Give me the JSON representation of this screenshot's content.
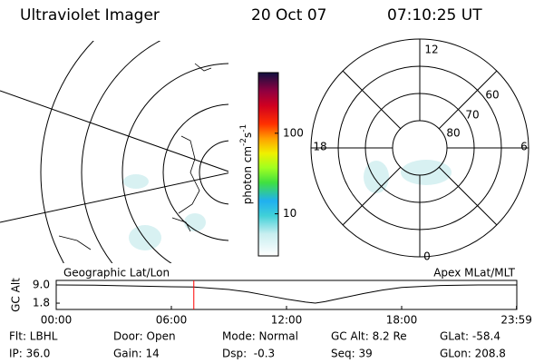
{
  "header": {
    "title": "Ultraviolet Imager",
    "date": "20 Oct 07",
    "time": "07:10:25 UT"
  },
  "left_map": {
    "caption": "Geographic Lat/Lon"
  },
  "right_map": {
    "caption": "Apex MLat/MLT",
    "mlt_labels": [
      "12",
      "6",
      "0",
      "18"
    ],
    "mlat_labels": [
      "60",
      "70",
      "80"
    ]
  },
  "colorbar": {
    "label_parts": [
      "photon cm",
      "-2",
      "s",
      "-1"
    ],
    "log": true,
    "range": [
      3,
      566
    ],
    "ticks": [
      10,
      100
    ]
  },
  "chart_data": {
    "type": "line",
    "y_label": "GC Alt",
    "x": [
      0,
      2,
      4,
      6,
      7.17,
      9,
      10,
      11,
      12,
      13,
      13.5,
      14,
      15,
      16,
      17,
      18,
      20,
      22,
      24
    ],
    "series": [
      {
        "name": "GC Alt",
        "color": "#000000",
        "values": [
          9.0,
          8.9,
          8.6,
          8.3,
          8.2,
          7.2,
          6.2,
          4.8,
          3.4,
          2.2,
          1.8,
          2.4,
          4.0,
          5.6,
          7.0,
          8.0,
          8.8,
          9.0,
          9.0
        ]
      }
    ],
    "marker_x": 7.17,
    "marker_color": "#ff0000",
    "xlim": [
      0,
      24
    ],
    "ylim": [
      -0.7,
      10.8
    ],
    "xticks": [
      {
        "value": 0,
        "label": "00:00"
      },
      {
        "value": 6,
        "label": "06:00"
      },
      {
        "value": 12,
        "label": "12:00"
      },
      {
        "value": 18,
        "label": "18:00"
      },
      {
        "value": 23.983,
        "label": "23:59"
      }
    ],
    "yticks": [
      {
        "value": 9,
        "label": "9.0"
      },
      {
        "value": 1.8,
        "label": "1.8"
      }
    ]
  },
  "footer": {
    "rows": [
      [
        "Flt: LBHL",
        "Door: Open",
        "Mode: Normal",
        "GC Alt: 8.2 Re",
        "GLat: -58.4"
      ],
      [
        "IP: 36.0",
        "Gain: 14",
        "Dsp:  -0.3",
        "Seq: 39",
        "GLon: 208.8"
      ]
    ]
  }
}
